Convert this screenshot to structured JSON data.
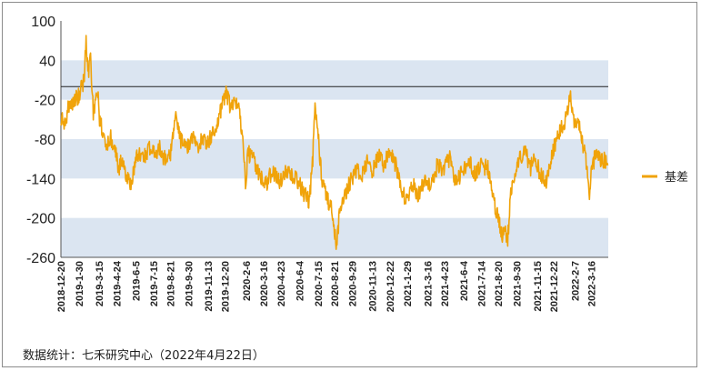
{
  "chart_data": {
    "type": "line",
    "series": [
      {
        "name": "基差",
        "color": "#f0a30a",
        "anchors": [
          [
            "2018-12-20",
            -45
          ],
          [
            "2018-12-28",
            -60
          ],
          [
            "2019-01-05",
            -35
          ],
          [
            "2019-01-12",
            -30
          ],
          [
            "2019-01-20",
            -20
          ],
          [
            "2019-01-28",
            -15
          ],
          [
            "2019-02-05",
            0
          ],
          [
            "2019-02-10",
            10
          ],
          [
            "2019-02-14",
            80
          ],
          [
            "2019-02-18",
            20
          ],
          [
            "2019-02-24",
            40
          ],
          [
            "2019-03-02",
            -40
          ],
          [
            "2019-03-08",
            -25
          ],
          [
            "2019-03-12",
            -10
          ],
          [
            "2019-03-16",
            -50
          ],
          [
            "2019-03-24",
            -70
          ],
          [
            "2019-04-01",
            -90
          ],
          [
            "2019-04-10",
            -75
          ],
          [
            "2019-04-20",
            -100
          ],
          [
            "2019-04-28",
            -125
          ],
          [
            "2019-05-06",
            -110
          ],
          [
            "2019-05-15",
            -135
          ],
          [
            "2019-05-25",
            -150
          ],
          [
            "2019-06-03",
            -115
          ],
          [
            "2019-06-12",
            -100
          ],
          [
            "2019-06-22",
            -110
          ],
          [
            "2019-07-02",
            -95
          ],
          [
            "2019-07-15",
            -100
          ],
          [
            "2019-07-28",
            -95
          ],
          [
            "2019-08-08",
            -110
          ],
          [
            "2019-08-21",
            -100
          ],
          [
            "2019-09-01",
            -45
          ],
          [
            "2019-09-12",
            -80
          ],
          [
            "2019-09-25",
            -95
          ],
          [
            "2019-10-08",
            -75
          ],
          [
            "2019-10-20",
            -90
          ],
          [
            "2019-11-01",
            -80
          ],
          [
            "2019-11-13",
            -85
          ],
          [
            "2019-11-25",
            -70
          ],
          [
            "2019-12-06",
            -50
          ],
          [
            "2019-12-16",
            -25
          ],
          [
            "2019-12-22",
            -5
          ],
          [
            "2020-01-02",
            -35
          ],
          [
            "2020-01-12",
            -25
          ],
          [
            "2020-01-20",
            -30
          ],
          [
            "2020-01-28",
            -70
          ],
          [
            "2020-02-04",
            -145
          ],
          [
            "2020-02-10",
            -100
          ],
          [
            "2020-02-20",
            -110
          ],
          [
            "2020-03-01",
            -125
          ],
          [
            "2020-03-12",
            -140
          ],
          [
            "2020-03-22",
            -150
          ],
          [
            "2020-04-02",
            -130
          ],
          [
            "2020-04-15",
            -140
          ],
          [
            "2020-04-25",
            -145
          ],
          [
            "2020-05-08",
            -125
          ],
          [
            "2020-05-20",
            -135
          ],
          [
            "2020-06-04",
            -150
          ],
          [
            "2020-06-15",
            -165
          ],
          [
            "2020-06-25",
            -175
          ],
          [
            "2020-07-03",
            -110
          ],
          [
            "2020-07-08",
            -25
          ],
          [
            "2020-07-14",
            -70
          ],
          [
            "2020-07-24",
            -145
          ],
          [
            "2020-08-05",
            -170
          ],
          [
            "2020-08-15",
            -190
          ],
          [
            "2020-08-25",
            -245
          ],
          [
            "2020-09-02",
            -180
          ],
          [
            "2020-09-12",
            -165
          ],
          [
            "2020-09-24",
            -145
          ],
          [
            "2020-10-08",
            -125
          ],
          [
            "2020-10-20",
            -135
          ],
          [
            "2020-11-02",
            -115
          ],
          [
            "2020-11-13",
            -130
          ],
          [
            "2020-11-26",
            -105
          ],
          [
            "2020-12-08",
            -120
          ],
          [
            "2020-12-22",
            -100
          ],
          [
            "2021-01-05",
            -120
          ],
          [
            "2021-01-15",
            -160
          ],
          [
            "2021-01-28",
            -170
          ],
          [
            "2021-02-10",
            -150
          ],
          [
            "2021-02-24",
            -165
          ],
          [
            "2021-03-10",
            -140
          ],
          [
            "2021-03-24",
            -150
          ],
          [
            "2021-04-06",
            -120
          ],
          [
            "2021-04-20",
            -125
          ],
          [
            "2021-05-04",
            -110
          ],
          [
            "2021-05-18",
            -145
          ],
          [
            "2021-06-02",
            -130
          ],
          [
            "2021-06-16",
            -115
          ],
          [
            "2021-06-30",
            -135
          ],
          [
            "2021-07-14",
            -120
          ],
          [
            "2021-07-28",
            -125
          ],
          [
            "2021-08-08",
            -170
          ],
          [
            "2021-08-20",
            -200
          ],
          [
            "2021-08-28",
            -230
          ],
          [
            "2021-09-04",
            -215
          ],
          [
            "2021-09-10",
            -235
          ],
          [
            "2021-09-16",
            -165
          ],
          [
            "2021-09-26",
            -130
          ],
          [
            "2021-10-06",
            -110
          ],
          [
            "2021-10-18",
            -95
          ],
          [
            "2021-10-30",
            -125
          ],
          [
            "2021-11-10",
            -105
          ],
          [
            "2021-11-22",
            -135
          ],
          [
            "2021-12-05",
            -145
          ],
          [
            "2021-12-18",
            -100
          ],
          [
            "2021-12-30",
            -75
          ],
          [
            "2022-01-10",
            -60
          ],
          [
            "2022-01-22",
            -40
          ],
          [
            "2022-01-28",
            -10
          ],
          [
            "2022-02-05",
            -60
          ],
          [
            "2022-02-15",
            -55
          ],
          [
            "2022-02-25",
            -90
          ],
          [
            "2022-03-04",
            -115
          ],
          [
            "2022-03-10",
            -165
          ],
          [
            "2022-03-18",
            -120
          ],
          [
            "2022-03-28",
            -95
          ],
          [
            "2022-04-06",
            -115
          ],
          [
            "2022-04-14",
            -110
          ],
          [
            "2022-04-21",
            -120
          ]
        ]
      }
    ],
    "yticks": [
      "100",
      "40",
      "-20",
      "-80",
      "-140",
      "-200",
      "-260"
    ],
    "xticks": [
      "2018-12-20",
      "2019-1-30",
      "2019-3-15",
      "2019-4-24",
      "2019-6-5",
      "2019-7-15",
      "2019-8-21",
      "2019-9-30",
      "2019-11-13",
      "2019-12-20",
      "2020-2-6",
      "2020-3-16",
      "2020-4-23",
      "2020-6-4",
      "2020-7-15",
      "2020-8-21",
      "2020-9-29",
      "2020-11-13",
      "2020-12-22",
      "2021-1-29",
      "2021-3-16",
      "2021-4-23",
      "2021-6-4",
      "2021-7-14",
      "2021-8-20",
      "2021-9-30",
      "2021-11-15",
      "2021-12-22",
      "2022-2-7",
      "2022-3-16"
    ],
    "ylim": [
      -260,
      100
    ],
    "xlim": [
      "2018-12-20",
      "2022-04-22"
    ],
    "bands": [
      [
        -20,
        40
      ],
      [
        -140,
        -80
      ],
      [
        -260,
        -200
      ]
    ],
    "band_color": "#dbe5f1",
    "reference_line": 0,
    "legend_position": "right",
    "grid": false
  },
  "footer": {
    "source": "数据统计：七禾研究中心（2022年4月22日）"
  }
}
